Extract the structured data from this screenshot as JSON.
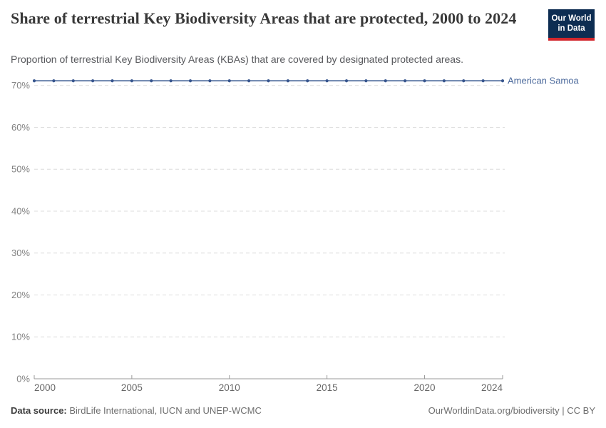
{
  "header": {
    "title": "Share of terrestrial Key Biodiversity Areas that are protected, 2000 to 2024",
    "subtitle": "Proportion of terrestrial Key Biodiversity Areas (KBAs) that are covered by designated protected areas.",
    "logo": {
      "line1": "Our World",
      "line2": "in Data",
      "bg_color": "#0d2d52",
      "stripe_color": "#d2262c"
    }
  },
  "chart_data": {
    "type": "line",
    "title": "Share of terrestrial Key Biodiversity Areas that are protected, 2000 to 2024",
    "xlabel": "",
    "ylabel": "",
    "x": [
      2000,
      2001,
      2002,
      2003,
      2004,
      2005,
      2006,
      2007,
      2008,
      2009,
      2010,
      2011,
      2012,
      2013,
      2014,
      2015,
      2016,
      2017,
      2018,
      2019,
      2020,
      2021,
      2022,
      2023,
      2024
    ],
    "series": [
      {
        "name": "American Samoa",
        "values": [
          71.1,
          71.1,
          71.1,
          71.1,
          71.1,
          71.1,
          71.1,
          71.1,
          71.1,
          71.1,
          71.1,
          71.1,
          71.1,
          71.1,
          71.1,
          71.1,
          71.1,
          71.1,
          71.1,
          71.1,
          71.1,
          71.1,
          71.1,
          71.1,
          71.1
        ]
      }
    ],
    "xlim": [
      2000,
      2024
    ],
    "ylim": [
      0,
      72.5
    ],
    "xticks": [
      2000,
      2005,
      2010,
      2015,
      2020,
      2024
    ],
    "yticks": [
      0,
      10,
      20,
      30,
      40,
      50,
      60,
      70
    ],
    "ytick_suffix": "%",
    "grid": true,
    "markers": true,
    "legend_position": "end-of-line",
    "colors": {
      "line": "#4C6A9C",
      "marker": "#38568e",
      "entity_label": "#4C6A9C",
      "gridline": "#dcdcdc",
      "axis": "#9a9a9a",
      "ytick_label": "#828282",
      "xtick_label": "#666666"
    }
  },
  "footer": {
    "source_label": "Data source:",
    "source_value": " BirdLife International, IUCN and UNEP-WCMC",
    "link": "OurWorldinData.org/biodiversity | CC BY"
  }
}
